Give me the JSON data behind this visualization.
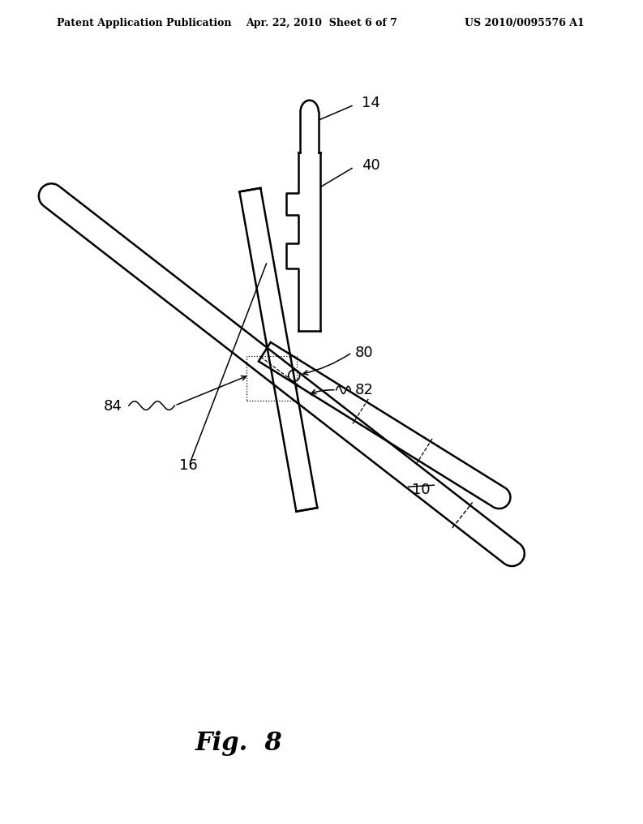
{
  "header_left": "Patent Application Publication",
  "header_center": "Apr. 22, 2010  Sheet 6 of 7",
  "header_right": "US 2010/0095576 A1",
  "fig_label": "Fig.  8",
  "background_color": "#ffffff",
  "line_color": "#000000",
  "label_14": "14",
  "label_40": "40",
  "label_80": "80",
  "label_82": "82",
  "label_84": "84",
  "label_16": "16",
  "label_10": "10"
}
